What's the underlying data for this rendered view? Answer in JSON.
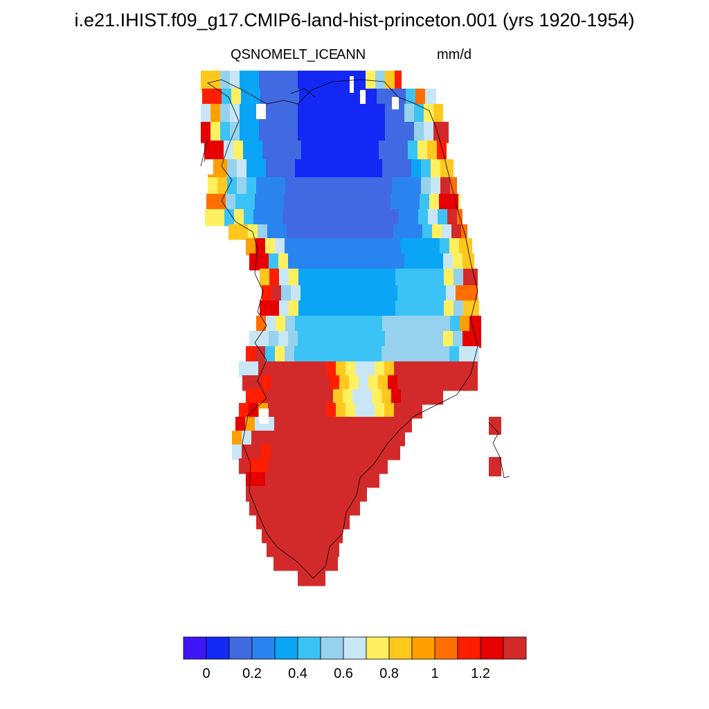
{
  "title": "i.e21.IHIST.f09_g17.CMIP6-land-hist-princeton.001 (yrs 1920-1954)",
  "variable": "QSNOMELT_ICE",
  "season": "ANN",
  "units": "mm/d",
  "colorbar": {
    "colors": [
      "#3f14f5",
      "#1428f5",
      "#4169e1",
      "#2a84f0",
      "#0aa5f5",
      "#3cc3f5",
      "#96d2ee",
      "#c8e6f5",
      "#fff060",
      "#ffc81e",
      "#ffa000",
      "#ff6e00",
      "#ff1e00",
      "#e60000",
      "#d22a2a"
    ],
    "tick_labels": [
      "0",
      "0.2",
      "0.4",
      "0.6",
      "0.8",
      "1",
      "1.2"
    ]
  }
}
